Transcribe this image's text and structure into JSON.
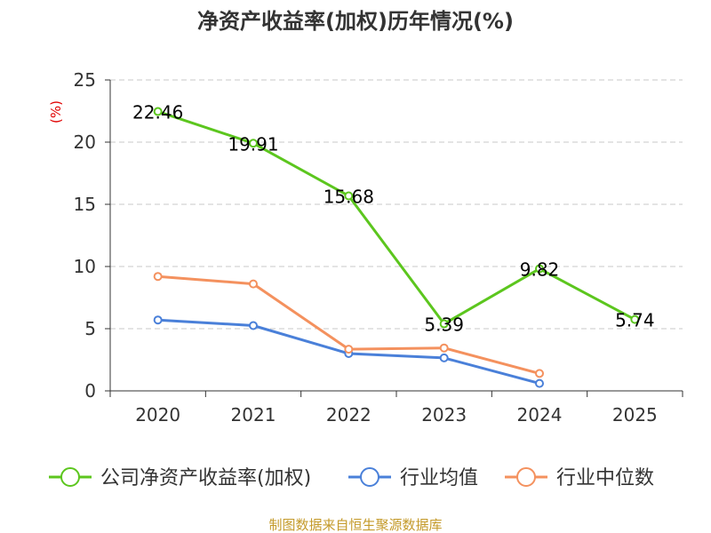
{
  "chart_data": {
    "type": "line",
    "title": "净资产收益率(加权)历年情况(%)",
    "ylabel": "(%)",
    "xlabel": "",
    "categories": [
      "2020",
      "2021",
      "2022",
      "2023",
      "2024",
      "2025"
    ],
    "ylim": [
      0,
      25
    ],
    "yticks": [
      0,
      5,
      10,
      15,
      20,
      25
    ],
    "grid": true,
    "series": [
      {
        "name": "公司净资产收益率(加权)",
        "color": "#5cc61e",
        "values": [
          22.46,
          19.91,
          15.68,
          5.39,
          9.82,
          5.74
        ],
        "labels": [
          "22.46",
          "19.91",
          "15.68",
          "5.39",
          "9.82",
          "5.74"
        ]
      },
      {
        "name": "行业均值",
        "color": "#4a80d9",
        "values": [
          5.7,
          5.25,
          3.0,
          2.65,
          0.6,
          null
        ]
      },
      {
        "name": "行业中位数",
        "color": "#f4915e",
        "values": [
          9.2,
          8.6,
          3.35,
          3.45,
          1.4,
          null
        ]
      }
    ],
    "legend_position": "bottom",
    "source": "制图数据来自恒生聚源数据库"
  }
}
